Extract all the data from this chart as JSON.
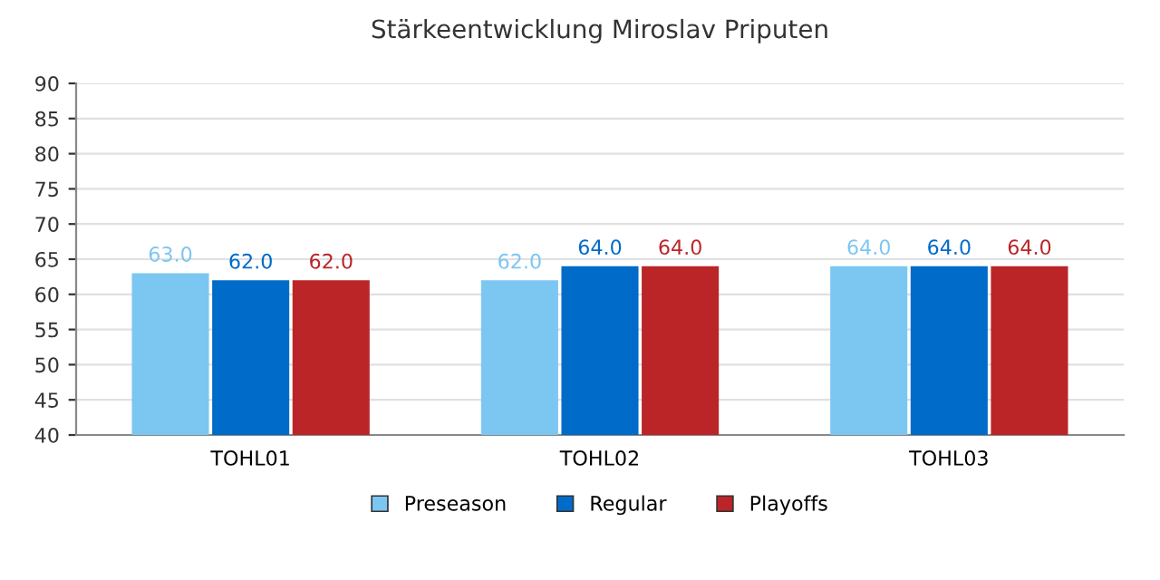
{
  "chart_data": {
    "type": "bar",
    "title": "Stärkeentwicklung Miroslav Priputen",
    "categories": [
      "TOHL01",
      "TOHL02",
      "TOHL03"
    ],
    "series": [
      {
        "name": "Preseason",
        "color": "#7cc6f2",
        "values": [
          63.0,
          62.0,
          64.0
        ],
        "value_labels": [
          "63.0",
          "62.0",
          "64.0"
        ]
      },
      {
        "name": "Regular",
        "color": "#006bc9",
        "values": [
          62.0,
          64.0,
          64.0
        ],
        "value_labels": [
          "62.0",
          "64.0",
          "64.0"
        ]
      },
      {
        "name": "Playoffs",
        "color": "#bb2528",
        "values": [
          62.0,
          64.0,
          64.0
        ],
        "value_labels": [
          "62.0",
          "64.0",
          "64.0"
        ]
      }
    ],
    "ylim": [
      40,
      90
    ],
    "yticks": [
      40,
      45,
      50,
      55,
      60,
      65,
      70,
      75,
      80,
      85,
      90
    ],
    "grid": "y",
    "legend": "bottom"
  }
}
